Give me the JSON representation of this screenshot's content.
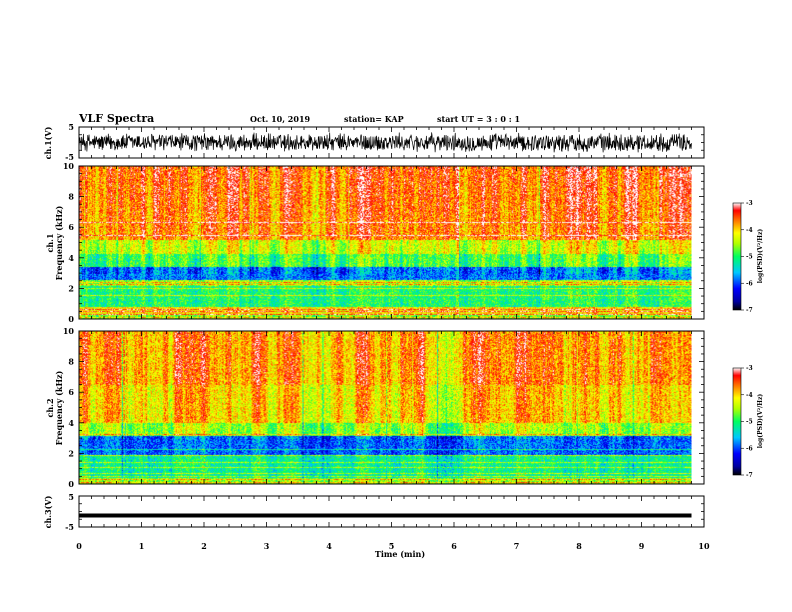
{
  "header": {
    "title": "VLF Spectra",
    "date": "Oct. 10, 2019",
    "station": "station= KAP",
    "start_ut": "start  UT =   3 : 0  : 1"
  },
  "chart_data": [
    {
      "id": "ch1-waveform",
      "type": "line",
      "ylabel": "ch.1(V)",
      "ylim": [
        -5,
        5
      ],
      "yticks": [
        "5",
        "-5"
      ],
      "signal_range": [
        -3.3,
        3.3
      ],
      "color": "#000000"
    },
    {
      "id": "ch1-spectrogram",
      "type": "heatmap",
      "ylabel": "ch.1\nFrequency  (kHz)",
      "ylim": [
        0,
        10
      ],
      "yticks": [
        "0",
        "2",
        "4",
        "6",
        "8",
        "10"
      ],
      "colorbar": {
        "label": "log(PSD)(V²/Hz)",
        "range": [
          -7,
          -3
        ],
        "ticks": [
          "-3",
          "-4",
          "-5",
          "-6",
          "-7"
        ]
      }
    },
    {
      "id": "ch2-spectrogram",
      "type": "heatmap",
      "ylabel": "ch.2\nFrequency  (kHz)",
      "ylim": [
        0,
        10
      ],
      "yticks": [
        "0",
        "2",
        "4",
        "6",
        "8",
        "10"
      ],
      "colorbar": {
        "label": "log(PSD)(V²/Hz)",
        "range": [
          -7,
          -3
        ],
        "ticks": [
          "-3",
          "-4",
          "-5",
          "-6",
          "-7"
        ]
      }
    },
    {
      "id": "ch3-waveform",
      "type": "line",
      "ylabel": "ch.3(V)",
      "ylim": [
        -5,
        5
      ],
      "yticks": [
        "5",
        "-5"
      ],
      "signal_value": -1.3,
      "color": "#000000"
    }
  ],
  "x_axis": {
    "label": "Time  (min)",
    "xlim": [
      0,
      10
    ],
    "data_end": 9.8,
    "ticks": [
      "0",
      "1",
      "2",
      "3",
      "4",
      "5",
      "6",
      "7",
      "8",
      "9",
      "10"
    ]
  }
}
